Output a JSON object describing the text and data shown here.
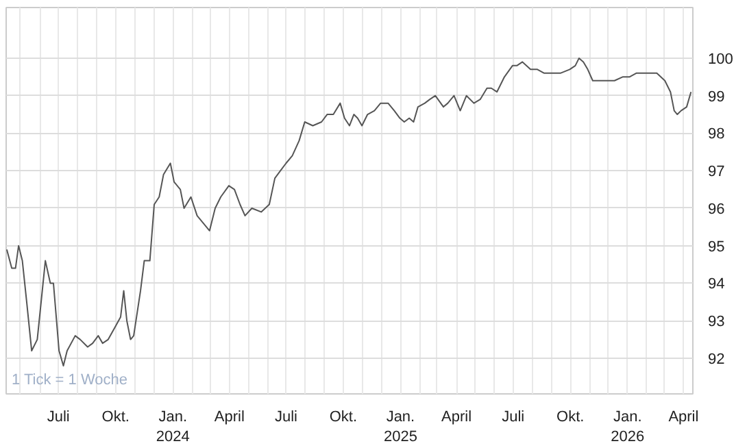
{
  "chart_data": {
    "type": "line",
    "annotations": [
      "1 Tick = 1 Woche"
    ],
    "x": [
      "2023-04-09",
      "2023-04-17",
      "2023-04-23",
      "2023-04-28",
      "2023-05-04",
      "2023-05-11",
      "2023-05-19",
      "2023-05-28",
      "2023-06-10",
      "2023-06-18",
      "2023-06-23",
      "2023-07-02",
      "2023-07-09",
      "2023-07-15",
      "2023-07-28",
      "2023-08-05",
      "2023-08-17",
      "2023-08-25",
      "2023-09-03",
      "2023-09-10",
      "2023-09-19",
      "2023-09-29",
      "2023-10-09",
      "2023-10-14",
      "2023-10-19",
      "2023-10-25",
      "2023-10-30",
      "2023-11-10",
      "2023-11-16",
      "2023-11-25",
      "2023-12-02",
      "2023-12-10",
      "2023-12-17",
      "2023-12-28",
      "2024-01-03",
      "2024-01-13",
      "2024-01-19",
      "2024-01-30",
      "2024-02-09",
      "2024-02-19",
      "2024-02-29",
      "2024-03-09",
      "2024-03-18",
      "2024-03-31",
      "2024-04-09",
      "2024-04-18",
      "2024-04-26",
      "2024-05-07",
      "2024-05-22",
      "2024-06-04",
      "2024-06-13",
      "2024-06-22",
      "2024-07-01",
      "2024-07-11",
      "2024-07-22",
      "2024-07-31",
      "2024-08-13",
      "2024-08-27",
      "2024-09-05",
      "2024-09-15",
      "2024-09-26",
      "2024-10-03",
      "2024-10-11",
      "2024-10-18",
      "2024-10-24",
      "2024-10-31",
      "2024-11-09",
      "2024-11-20",
      "2024-11-30",
      "2024-12-12",
      "2024-12-22",
      "2024-12-31",
      "2025-01-07",
      "2025-01-15",
      "2025-01-22",
      "2025-01-29",
      "2025-02-09",
      "2025-02-17",
      "2025-02-26",
      "2025-03-11",
      "2025-03-18",
      "2025-03-28",
      "2025-04-07",
      "2025-04-17",
      "2025-04-29",
      "2025-05-09",
      "2025-05-20",
      "2025-05-27",
      "2025-06-05",
      "2025-06-17",
      "2025-06-30",
      "2025-07-07",
      "2025-07-16",
      "2025-07-29",
      "2025-08-09",
      "2025-08-20",
      "2025-08-31",
      "2025-09-15",
      "2025-09-30",
      "2025-10-09",
      "2025-10-15",
      "2025-10-22",
      "2025-10-29",
      "2025-11-06",
      "2025-11-17",
      "2025-11-28",
      "2025-12-11",
      "2025-12-24",
      "2026-01-04",
      "2026-01-15",
      "2026-01-27",
      "2026-02-06",
      "2026-02-17",
      "2026-03-02",
      "2026-03-11",
      "2026-03-17",
      "2026-03-22",
      "2026-03-28",
      "2026-04-06",
      "2026-04-13"
    ],
    "series": [
      {
        "color": "#555555",
        "values": [
          94.9,
          94.4,
          94.4,
          95.0,
          94.6,
          93.5,
          92.2,
          92.5,
          94.6,
          94.0,
          94.0,
          92.2,
          91.8,
          92.2,
          92.6,
          92.5,
          92.3,
          92.4,
          92.6,
          92.4,
          92.5,
          92.8,
          93.1,
          93.8,
          93.0,
          92.5,
          92.6,
          93.8,
          94.6,
          94.6,
          96.1,
          96.3,
          96.9,
          97.2,
          96.7,
          96.5,
          96.0,
          96.3,
          95.8,
          95.6,
          95.4,
          96.0,
          96.3,
          96.6,
          96.5,
          96.1,
          95.8,
          96.0,
          95.9,
          96.1,
          96.8,
          97.0,
          97.2,
          97.4,
          97.8,
          98.3,
          98.2,
          98.3,
          98.5,
          98.5,
          98.8,
          98.4,
          98.2,
          98.5,
          98.4,
          98.2,
          98.5,
          98.6,
          98.8,
          98.8,
          98.6,
          98.4,
          98.3,
          98.4,
          98.3,
          98.7,
          98.8,
          98.9,
          99.0,
          98.7,
          98.8,
          99.0,
          98.6,
          99.0,
          98.8,
          98.9,
          99.2,
          99.2,
          99.1,
          99.5,
          99.8,
          99.8,
          99.9,
          99.7,
          99.7,
          99.6,
          99.6,
          99.6,
          99.7,
          99.8,
          100.0,
          99.9,
          99.7,
          99.4,
          99.4,
          99.4,
          99.4,
          99.5,
          99.5,
          99.6,
          99.6,
          99.6,
          99.6,
          99.4,
          99.1,
          98.6,
          98.5,
          98.6,
          98.7,
          99.1
        ]
      }
    ],
    "xlim": [
      "2023-04-08",
      "2026-04-16"
    ],
    "ylim": [
      91.05,
      101.35
    ],
    "xticks": [
      {
        "value": "2023-05",
        "label": null
      },
      {
        "value": "2023-06",
        "label": null
      },
      {
        "value": "2023-07",
        "label": "Juli"
      },
      {
        "value": "2023-08",
        "label": null
      },
      {
        "value": "2023-09",
        "label": null
      },
      {
        "value": "2023-10",
        "label": "Okt."
      },
      {
        "value": "2023-11",
        "label": null
      },
      {
        "value": "2023-12",
        "label": null
      },
      {
        "value": "2024-01",
        "label": "Jan.\n2024"
      },
      {
        "value": "2024-02",
        "label": null
      },
      {
        "value": "2024-03",
        "label": null
      },
      {
        "value": "2024-04",
        "label": "April"
      },
      {
        "value": "2024-05",
        "label": null
      },
      {
        "value": "2024-06",
        "label": null
      },
      {
        "value": "2024-07",
        "label": "Juli"
      },
      {
        "value": "2024-08",
        "label": null
      },
      {
        "value": "2024-09",
        "label": null
      },
      {
        "value": "2024-10",
        "label": "Okt."
      },
      {
        "value": "2024-11",
        "label": null
      },
      {
        "value": "2024-12",
        "label": null
      },
      {
        "value": "2025-01",
        "label": "Jan.\n2025"
      },
      {
        "value": "2025-02",
        "label": null
      },
      {
        "value": "2025-03",
        "label": null
      },
      {
        "value": "2025-04",
        "label": "April"
      },
      {
        "value": "2025-05",
        "label": null
      },
      {
        "value": "2025-06",
        "label": null
      },
      {
        "value": "2025-07",
        "label": "Juli"
      },
      {
        "value": "2025-08",
        "label": null
      },
      {
        "value": "2025-09",
        "label": null
      },
      {
        "value": "2025-10",
        "label": "Okt."
      },
      {
        "value": "2025-11",
        "label": null
      },
      {
        "value": "2025-12",
        "label": null
      },
      {
        "value": "2026-01",
        "label": "Jan.\n2026"
      },
      {
        "value": "2026-02",
        "label": null
      },
      {
        "value": "2026-03",
        "label": null
      },
      {
        "value": "2026-04",
        "label": "April"
      }
    ],
    "yticks": [
      92,
      93,
      94,
      95,
      96,
      97,
      98,
      99,
      100
    ],
    "grid": true,
    "marker": "none",
    "line_style": "solid"
  }
}
